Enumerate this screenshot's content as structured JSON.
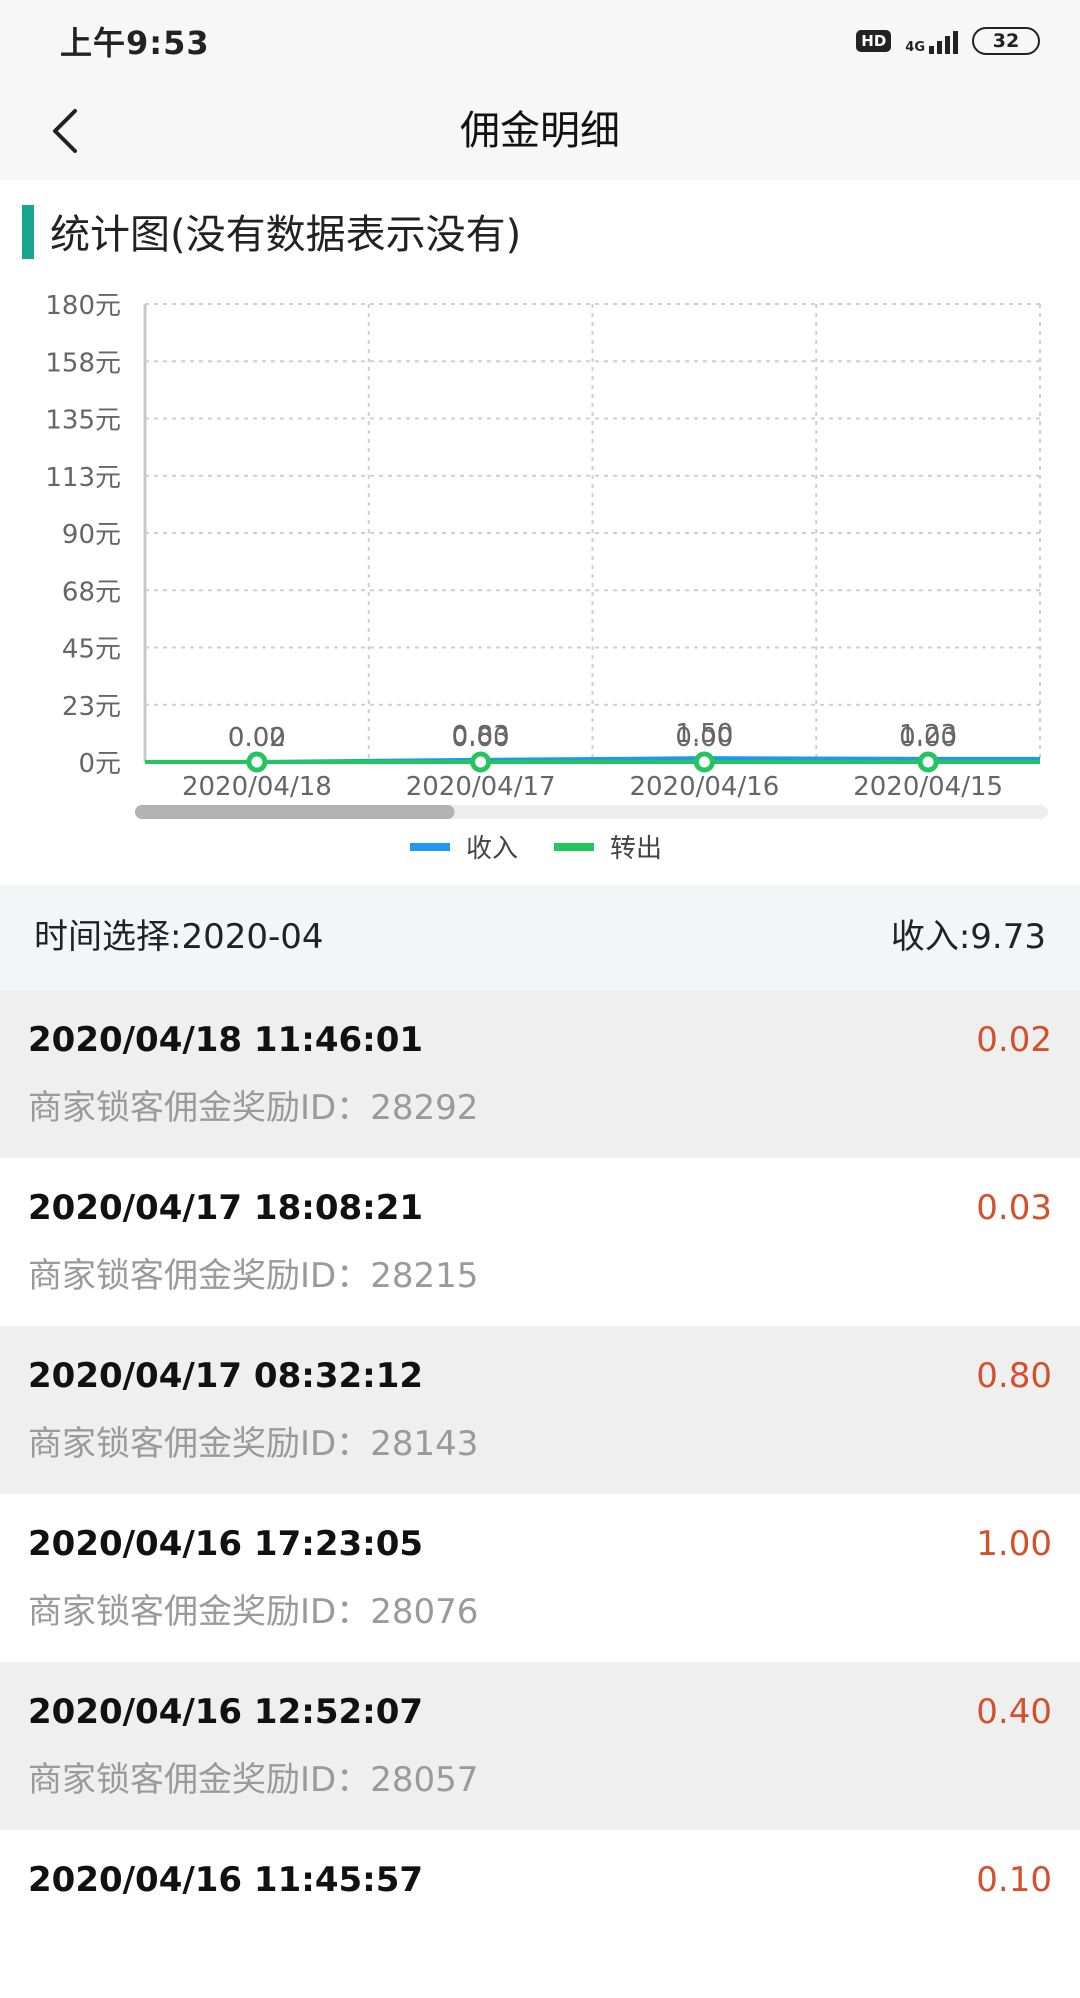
{
  "status_bar": {
    "time": "上午9:53",
    "hd_label": "HD",
    "network_label": "4G",
    "battery": "32"
  },
  "header": {
    "title": "佣金明细",
    "back_icon": "chevron-left-icon"
  },
  "section": {
    "title": "统计图(没有数据表示没有)",
    "accent_color": "#1aa590"
  },
  "chart_data": {
    "type": "line",
    "categories": [
      "2020/04/18",
      "2020/04/17",
      "2020/04/16",
      "2020/04/15"
    ],
    "y_ticks": [
      "180元",
      "158元",
      "135元",
      "113元",
      "90元",
      "68元",
      "45元",
      "23元",
      "0元"
    ],
    "ylim": [
      0,
      180
    ],
    "grid": true,
    "legend_position": "bottom",
    "series": [
      {
        "name": "收入",
        "color": "#2196f3",
        "values": [
          0.02,
          0.83,
          1.5,
          1.23
        ],
        "labels": [
          "0.02",
          "0.83",
          "1.50",
          "1.23"
        ]
      },
      {
        "name": "转出",
        "color": "#22c55e",
        "values": [
          0,
          0,
          0,
          0
        ],
        "labels": [
          "0.00",
          "0.00",
          "0.00",
          "0.00"
        ]
      }
    ],
    "scroll_fraction": 0.35
  },
  "filter": {
    "time_select": "时间选择:2020-04",
    "income_total": "收入:9.73"
  },
  "records": [
    {
      "time": "2020/04/18 11:46:01",
      "amount": "0.02",
      "desc": "商家锁客佣金奖励ID：28292"
    },
    {
      "time": "2020/04/17 18:08:21",
      "amount": "0.03",
      "desc": "商家锁客佣金奖励ID：28215"
    },
    {
      "time": "2020/04/17 08:32:12",
      "amount": "0.80",
      "desc": "商家锁客佣金奖励ID：28143"
    },
    {
      "time": "2020/04/16 17:23:05",
      "amount": "1.00",
      "desc": "商家锁客佣金奖励ID：28076"
    },
    {
      "time": "2020/04/16 12:52:07",
      "amount": "0.40",
      "desc": "商家锁客佣金奖励ID：28057"
    },
    {
      "time": "2020/04/16 11:45:57",
      "amount": "0.10",
      "desc": ""
    }
  ],
  "colors": {
    "amount": "#d4502a",
    "desc": "#9a9a9a"
  }
}
